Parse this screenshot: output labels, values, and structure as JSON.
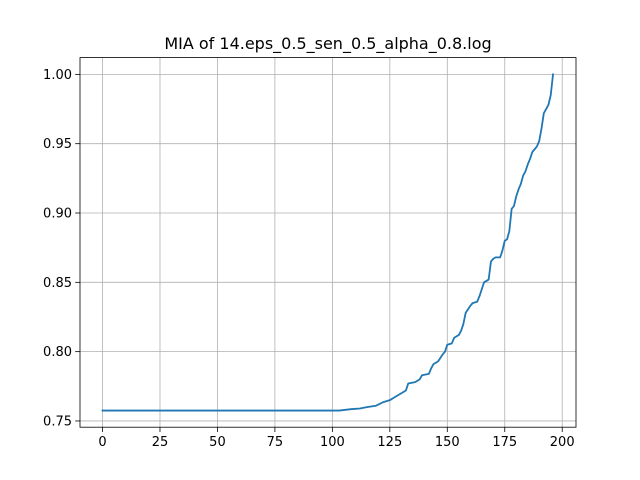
{
  "chart_data": {
    "type": "line",
    "title": "MIA of 14.eps_0.5_sen_0.5_alpha_0.8.log",
    "xlabel": "",
    "ylabel": "",
    "xlim": [
      -9.8,
      206
    ],
    "ylim": [
      0.7455,
      1.0121
    ],
    "grid": true,
    "x_ticks": [
      0,
      25,
      50,
      75,
      100,
      125,
      150,
      175,
      200
    ],
    "x_tick_labels": [
      "0",
      "25",
      "50",
      "75",
      "100",
      "125",
      "150",
      "175",
      "200"
    ],
    "y_ticks": [
      0.75,
      0.8,
      0.85,
      0.9,
      0.95,
      1.0
    ],
    "y_tick_labels": [
      "0.75",
      "0.80",
      "0.85",
      "0.90",
      "0.95",
      "1.00"
    ],
    "series": [
      {
        "color": "#1f77b4",
        "points": [
          [
            0,
            0.7575
          ],
          [
            103,
            0.7575
          ],
          [
            108,
            0.7585
          ],
          [
            112,
            0.759
          ],
          [
            115,
            0.76
          ],
          [
            119,
            0.761
          ],
          [
            122,
            0.7635
          ],
          [
            125,
            0.765
          ],
          [
            127,
            0.767
          ],
          [
            130,
            0.77
          ],
          [
            132,
            0.772
          ],
          [
            133,
            0.777
          ],
          [
            136,
            0.778
          ],
          [
            138,
            0.78
          ],
          [
            139,
            0.783
          ],
          [
            142,
            0.784
          ],
          [
            143,
            0.788
          ],
          [
            144,
            0.791
          ],
          [
            146,
            0.793
          ],
          [
            148,
            0.798
          ],
          [
            149,
            0.8
          ],
          [
            150,
            0.805
          ],
          [
            152,
            0.806
          ],
          [
            153,
            0.81
          ],
          [
            155,
            0.812
          ],
          [
            156,
            0.815
          ],
          [
            157,
            0.82
          ],
          [
            158,
            0.828
          ],
          [
            160,
            0.833
          ],
          [
            161,
            0.835
          ],
          [
            163,
            0.836
          ],
          [
            164,
            0.84
          ],
          [
            165,
            0.845
          ],
          [
            166,
            0.85
          ],
          [
            168,
            0.852
          ],
          [
            169,
            0.865
          ],
          [
            170,
            0.867
          ],
          [
            171,
            0.868
          ],
          [
            173,
            0.868
          ],
          [
            174,
            0.873
          ],
          [
            175,
            0.88
          ],
          [
            176,
            0.881
          ],
          [
            177,
            0.887
          ],
          [
            178,
            0.903
          ],
          [
            179,
            0.905
          ],
          [
            180,
            0.912
          ],
          [
            181,
            0.917
          ],
          [
            182,
            0.921
          ],
          [
            183,
            0.927
          ],
          [
            184,
            0.93
          ],
          [
            185,
            0.935
          ],
          [
            186,
            0.939
          ],
          [
            187,
            0.944
          ],
          [
            188,
            0.946
          ],
          [
            189,
            0.948
          ],
          [
            190,
            0.952
          ],
          [
            191,
            0.961
          ],
          [
            192,
            0.972
          ],
          [
            193,
            0.975
          ],
          [
            194,
            0.978
          ],
          [
            195,
            0.985
          ],
          [
            196,
            1.0
          ]
        ]
      }
    ]
  }
}
